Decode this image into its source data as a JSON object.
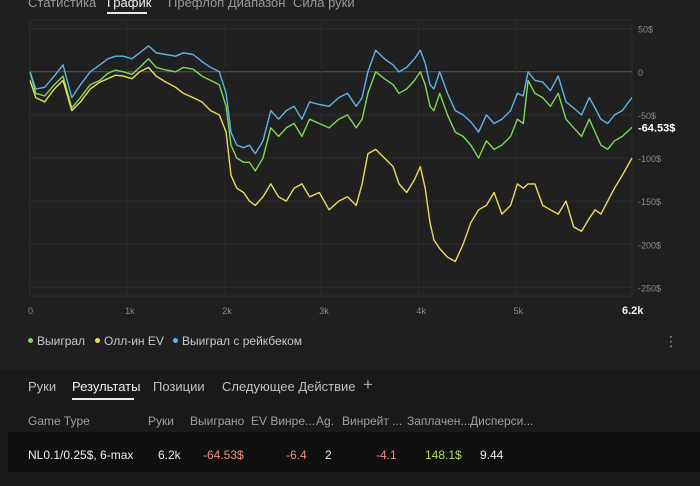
{
  "top_tabs": [
    "Статистика",
    "График",
    "Префлоп Диапазон",
    "Сила руки"
  ],
  "chart_data": {
    "type": "line",
    "x_ticks": [
      "0",
      "1k",
      "2k",
      "3k",
      "4k",
      "5k",
      "6.2k"
    ],
    "y_ticks": [
      "50$",
      "0",
      "-50$",
      "-100$",
      "-150$",
      "-200$",
      "-250$"
    ],
    "xlim": [
      0,
      6200
    ],
    "ylim": [
      -260,
      60
    ],
    "end_label": "-64.53$",
    "series": [
      {
        "name": "Выиграл",
        "color": "#7ed957",
        "x": [
          0,
          60,
          150,
          250,
          340,
          430,
          520,
          620,
          720,
          800,
          880,
          960,
          1050,
          1130,
          1220,
          1300,
          1400,
          1500,
          1580,
          1680,
          1770,
          1860,
          1950,
          2020,
          2070,
          2130,
          2200,
          2260,
          2320,
          2400,
          2480,
          2560,
          2640,
          2720,
          2800,
          2880,
          2980,
          3080,
          3180,
          3270,
          3360,
          3420,
          3480,
          3560,
          3650,
          3740,
          3800,
          3880,
          3960,
          4020,
          4070,
          4120,
          4160,
          4220,
          4300,
          4380,
          4460,
          4540,
          4620,
          4700,
          4780,
          4860,
          4950,
          5020,
          5080,
          5130,
          5200,
          5280,
          5360,
          5440,
          5520,
          5600,
          5680,
          5760,
          5820,
          5880,
          5950,
          6020,
          6100,
          6200
        ],
        "y": [
          0,
          -25,
          -28,
          -15,
          -5,
          -42,
          -30,
          -15,
          -10,
          -2,
          2,
          0,
          -3,
          5,
          15,
          5,
          2,
          0,
          5,
          3,
          -5,
          -10,
          -15,
          -40,
          -85,
          -100,
          -105,
          -105,
          -115,
          -100,
          -65,
          -75,
          -65,
          -60,
          -75,
          -55,
          -60,
          -65,
          -55,
          -50,
          -65,
          -55,
          -25,
          0,
          -8,
          -15,
          -25,
          -20,
          -10,
          0,
          -15,
          -40,
          -45,
          -25,
          -50,
          -70,
          -75,
          -85,
          -100,
          -80,
          -90,
          -85,
          -75,
          -55,
          -60,
          -10,
          -25,
          -30,
          -40,
          -25,
          -55,
          -65,
          -75,
          -55,
          -70,
          -85,
          -90,
          -80,
          -75,
          -64.53
        ]
      },
      {
        "name": "Олл-ин EV",
        "color": "#e9de5c",
        "x": [
          0,
          60,
          150,
          250,
          340,
          430,
          520,
          620,
          720,
          800,
          880,
          960,
          1050,
          1130,
          1220,
          1300,
          1400,
          1500,
          1580,
          1680,
          1770,
          1860,
          1950,
          2020,
          2070,
          2130,
          2200,
          2260,
          2320,
          2400,
          2480,
          2560,
          2640,
          2720,
          2800,
          2880,
          2980,
          3080,
          3180,
          3270,
          3360,
          3420,
          3480,
          3560,
          3650,
          3740,
          3800,
          3880,
          3960,
          4020,
          4070,
          4120,
          4160,
          4220,
          4300,
          4380,
          4460,
          4540,
          4620,
          4700,
          4780,
          4860,
          4950,
          5020,
          5080,
          5130,
          5200,
          5280,
          5360,
          5440,
          5520,
          5600,
          5680,
          5760,
          5820,
          5880,
          5950,
          6020,
          6100,
          6200
        ],
        "y": [
          -10,
          -30,
          -35,
          -20,
          -10,
          -45,
          -35,
          -20,
          -12,
          -8,
          -4,
          -5,
          -8,
          0,
          5,
          -5,
          -12,
          -18,
          -25,
          -30,
          -35,
          -45,
          -50,
          -70,
          -120,
          -135,
          -140,
          -150,
          -155,
          -145,
          -130,
          -145,
          -150,
          -135,
          -130,
          -145,
          -140,
          -160,
          -150,
          -145,
          -155,
          -130,
          -95,
          -90,
          -100,
          -110,
          -130,
          -140,
          -125,
          -110,
          -135,
          -175,
          -195,
          -205,
          -215,
          -220,
          -200,
          -175,
          -160,
          -155,
          -140,
          -165,
          -155,
          -130,
          -135,
          -130,
          -130,
          -155,
          -160,
          -165,
          -150,
          -180,
          -185,
          -170,
          -160,
          -165,
          -150,
          -135,
          -120,
          -100
        ]
      },
      {
        "name": "Выиграл с рейкбеком",
        "color": "#5fb3e8",
        "x": [
          0,
          60,
          150,
          250,
          340,
          430,
          520,
          620,
          720,
          800,
          880,
          960,
          1050,
          1130,
          1220,
          1300,
          1400,
          1500,
          1580,
          1680,
          1770,
          1860,
          1950,
          2020,
          2070,
          2130,
          2200,
          2260,
          2320,
          2400,
          2480,
          2560,
          2640,
          2720,
          2800,
          2880,
          2980,
          3080,
          3180,
          3270,
          3360,
          3420,
          3480,
          3560,
          3650,
          3740,
          3800,
          3880,
          3960,
          4020,
          4070,
          4120,
          4160,
          4220,
          4300,
          4380,
          4460,
          4540,
          4620,
          4700,
          4780,
          4860,
          4950,
          5020,
          5080,
          5130,
          5200,
          5280,
          5360,
          5440,
          5520,
          5600,
          5680,
          5760,
          5820,
          5880,
          5950,
          6020,
          6100,
          6200
        ],
        "y": [
          0,
          -20,
          -18,
          -5,
          8,
          -30,
          -15,
          0,
          8,
          15,
          18,
          18,
          15,
          22,
          30,
          22,
          20,
          18,
          22,
          20,
          12,
          5,
          0,
          -25,
          -70,
          -85,
          -88,
          -85,
          -95,
          -80,
          -45,
          -55,
          -45,
          -40,
          -55,
          -35,
          -38,
          -40,
          -30,
          -25,
          -40,
          -30,
          0,
          25,
          15,
          8,
          0,
          5,
          15,
          25,
          10,
          -15,
          -20,
          0,
          -25,
          -45,
          -50,
          -58,
          -70,
          -50,
          -60,
          -55,
          -45,
          -25,
          -28,
          0,
          -10,
          -12,
          -22,
          -5,
          -35,
          -42,
          -50,
          -30,
          -42,
          -55,
          -60,
          -50,
          -45,
          -30
        ]
      }
    ]
  },
  "legend": [
    "Выиграл",
    "Олл-ин EV",
    "Выиграл с рейкбеком"
  ],
  "colors": {
    "green": "#7ed957",
    "yellow": "#e9de5c",
    "blue": "#5fb3e8"
  },
  "more_icon": "more-vertical-icon",
  "sub_tabs": [
    "Руки",
    "Результаты",
    "Позиции",
    "Следующее Действие"
  ],
  "add_tab_label": "+",
  "table": {
    "headers": [
      "Game Type",
      "Руки",
      "Выиграно",
      "EV Винре...",
      "Ag.",
      "Винрейт ...",
      "Заплачен...",
      "Дисперси..."
    ],
    "row": [
      "NL0.1/0.25$, 6-max",
      "6.2k",
      "-64.53$",
      "-6.4",
      "2",
      "-4.1",
      "148.1$",
      "9.44"
    ]
  }
}
